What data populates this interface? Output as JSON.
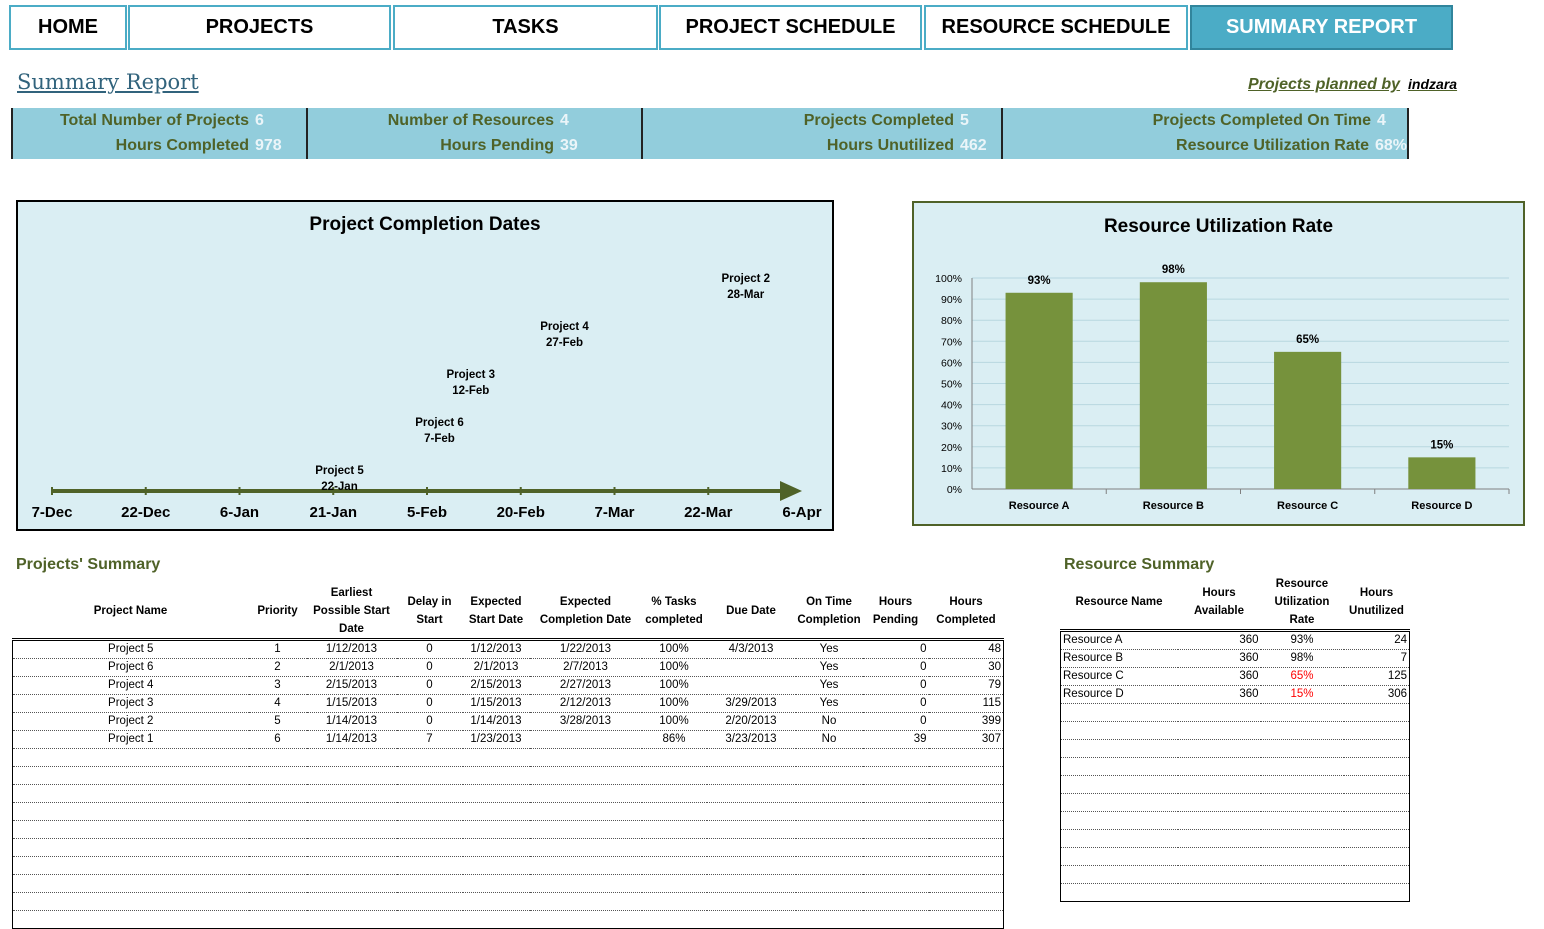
{
  "tabs": [
    {
      "label": "HOME",
      "active": false
    },
    {
      "label": "PROJECTS",
      "active": false
    },
    {
      "label": "TASKS",
      "active": false
    },
    {
      "label": "PROJECT SCHEDULE",
      "active": false
    },
    {
      "label": "RESOURCE SCHEDULE",
      "active": false
    },
    {
      "label": "SUMMARY REPORT",
      "active": true
    }
  ],
  "header": {
    "title": "Summary Report",
    "planned_label": "Projects planned by",
    "planned_by": "indzara"
  },
  "kpis": [
    {
      "label1": "Total Number of Projects",
      "value1": "6",
      "label2": "Hours Completed",
      "value2": "978"
    },
    {
      "label1": "Number of Resources",
      "value1": "4",
      "label2": "Hours Pending",
      "value2": "39"
    },
    {
      "label1": "Projects Completed",
      "value1": "5",
      "label2": "Hours Unutilized",
      "value2": "462"
    },
    {
      "label1": "Projects Completed On Time",
      "value1": "4",
      "label2": "Resource Utilization Rate",
      "value2": "68%"
    }
  ],
  "chart_data": [
    {
      "type": "scatter",
      "title": "Project Completion Dates",
      "x_tick_labels": [
        "7-Dec",
        "22-Dec",
        "6-Jan",
        "21-Jan",
        "5-Feb",
        "20-Feb",
        "7-Mar",
        "22-Mar",
        "6-Apr"
      ],
      "xlim": [
        "2012-12-07",
        "2013-04-06"
      ],
      "points": [
        {
          "name": "Project 5",
          "label": "22-Jan",
          "x": "2013-01-22",
          "level": 1
        },
        {
          "name": "Project 6",
          "label": "7-Feb",
          "x": "2013-02-07",
          "level": 2
        },
        {
          "name": "Project 3",
          "label": "12-Feb",
          "x": "2013-02-12",
          "level": 3
        },
        {
          "name": "Project 4",
          "label": "27-Feb",
          "x": "2013-02-27",
          "level": 4
        },
        {
          "name": "Project 2",
          "label": "28-Mar",
          "x": "2013-03-28",
          "level": 5
        }
      ],
      "bg_color": "#daeef3",
      "axis_color": "#4f6228"
    },
    {
      "type": "bar",
      "title": "Resource Utilization Rate",
      "categories": [
        "Resource A",
        "Resource B",
        "Resource C",
        "Resource D"
      ],
      "values": [
        93,
        98,
        65,
        15
      ],
      "data_labels": [
        "93%",
        "98%",
        "65%",
        "15%"
      ],
      "y_tick_labels": [
        "0%",
        "10%",
        "20%",
        "30%",
        "40%",
        "50%",
        "60%",
        "70%",
        "80%",
        "90%",
        "100%"
      ],
      "ylim": [
        0,
        100
      ],
      "grid": true,
      "bar_color": "#76923c"
    }
  ],
  "projects_summary": {
    "title": "Projects' Summary",
    "headers": [
      "Project Name",
      "Priority",
      "Earliest Possible Start Date",
      "Delay in Start",
      "Expected Start Date",
      "Expected Completion Date",
      "% Tasks completed",
      "Due Date",
      "On Time Completion",
      "Hours Pending",
      "Hours Completed"
    ],
    "rows": [
      [
        "Project 5",
        "1",
        "1/12/2013",
        "0",
        "1/12/2013",
        "1/22/2013",
        "100%",
        "4/3/2013",
        "Yes",
        "0",
        "48"
      ],
      [
        "Project 6",
        "2",
        "2/1/2013",
        "0",
        "2/1/2013",
        "2/7/2013",
        "100%",
        "",
        "Yes",
        "0",
        "30"
      ],
      [
        "Project 4",
        "3",
        "2/15/2013",
        "0",
        "2/15/2013",
        "2/27/2013",
        "100%",
        "",
        "Yes",
        "0",
        "79"
      ],
      [
        "Project 3",
        "4",
        "1/15/2013",
        "0",
        "1/15/2013",
        "2/12/2013",
        "100%",
        "3/29/2013",
        "Yes",
        "0",
        "115"
      ],
      [
        "Project 2",
        "5",
        "1/14/2013",
        "0",
        "1/14/2013",
        "3/28/2013",
        "100%",
        "2/20/2013",
        "No",
        "0",
        "399"
      ],
      [
        "Project 1",
        "6",
        "1/14/2013",
        "7",
        "1/23/2013",
        "",
        "86%",
        "3/23/2013",
        "No",
        "39",
        "307"
      ]
    ]
  },
  "resource_summary": {
    "title": "Resource Summary",
    "headers": [
      "Resource Name",
      "Hours Available",
      "Resource Utilization Rate",
      "Hours Unutilized"
    ],
    "rows": [
      [
        "Resource A",
        "360",
        "93%",
        "24"
      ],
      [
        "Resource B",
        "360",
        "98%",
        "7"
      ],
      [
        "Resource C",
        "360",
        "65%",
        "125"
      ],
      [
        "Resource D",
        "360",
        "15%",
        "306"
      ]
    ],
    "highlight_color": "#ff0000"
  }
}
